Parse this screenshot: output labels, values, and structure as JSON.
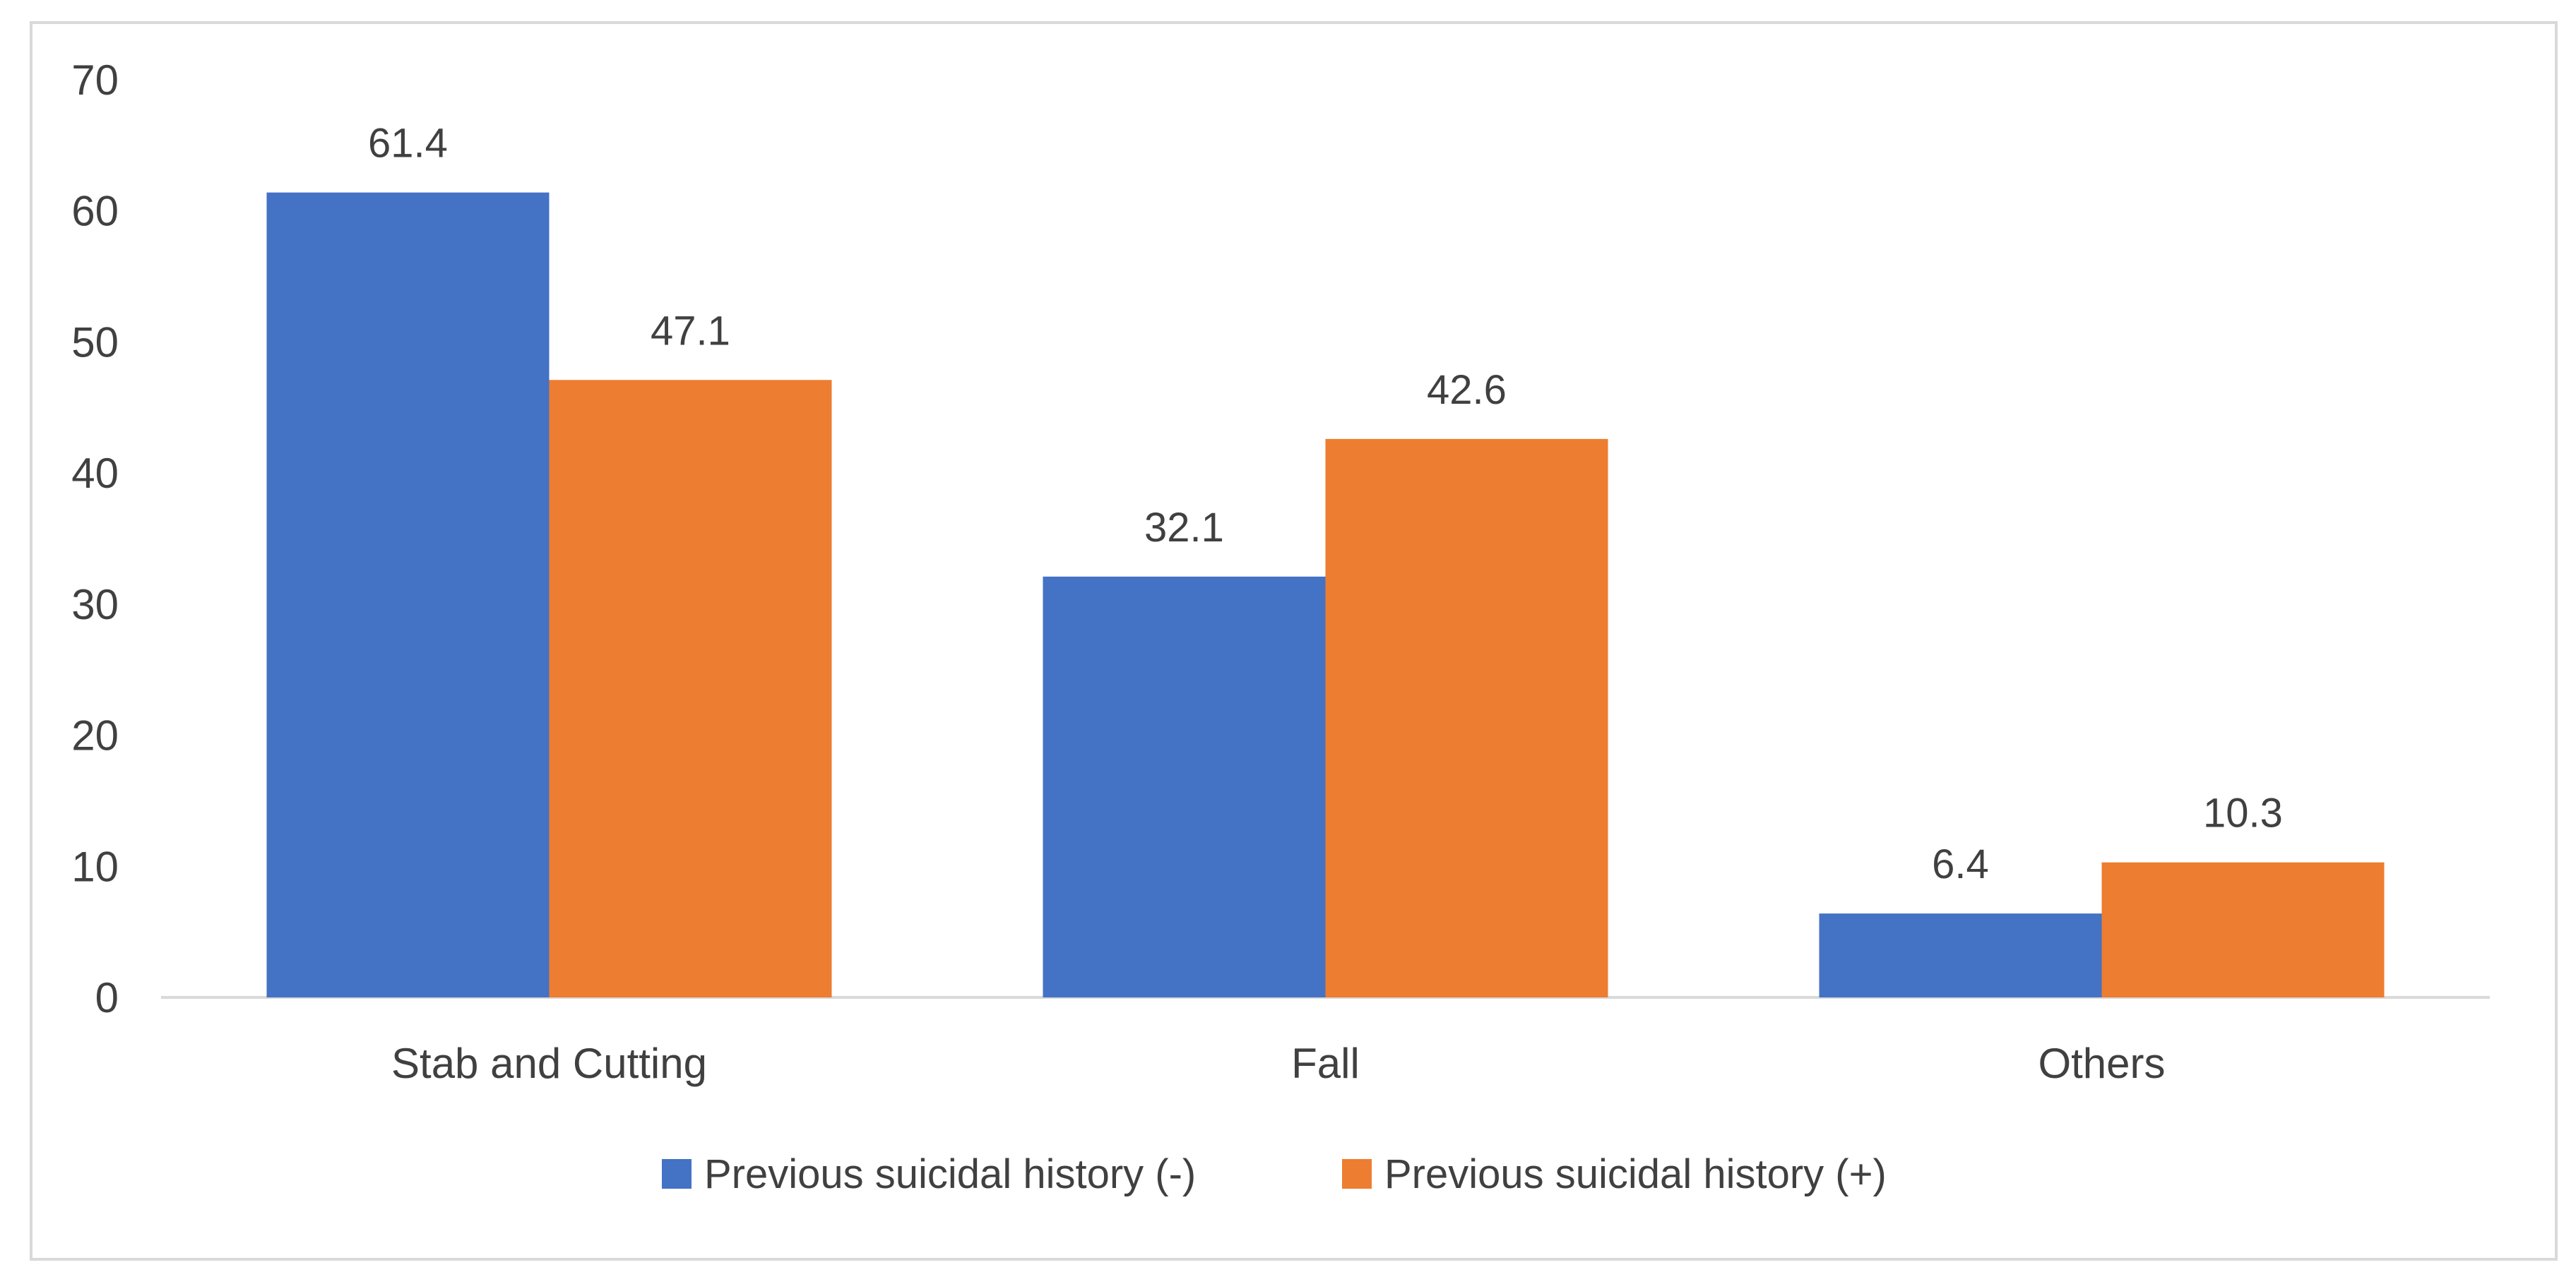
{
  "chart_data": {
    "type": "bar",
    "title": "",
    "xlabel": "",
    "ylabel": "",
    "categories": [
      "Stab and Cutting",
      "Fall",
      "Others"
    ],
    "series": [
      {
        "name": "Previous suicidal history (-)",
        "values": [
          61.4,
          32.1,
          6.4
        ],
        "labels": [
          "61.4",
          "32.1",
          "6.4"
        ],
        "color": "#4472C4"
      },
      {
        "name": "Previous suicidal history (+)",
        "values": [
          47.1,
          42.6,
          10.3
        ],
        "labels": [
          "47.1",
          "42.6",
          "10.3"
        ],
        "color": "#ED7D31"
      }
    ],
    "ylim": [
      0,
      70
    ],
    "yticks": [
      0,
      10,
      20,
      30,
      40,
      50,
      60,
      70
    ],
    "ytick_labels": [
      "0",
      "10",
      "20",
      "30",
      "40",
      "50",
      "60",
      "70"
    ],
    "grid": false,
    "legend_position": "bottom"
  }
}
